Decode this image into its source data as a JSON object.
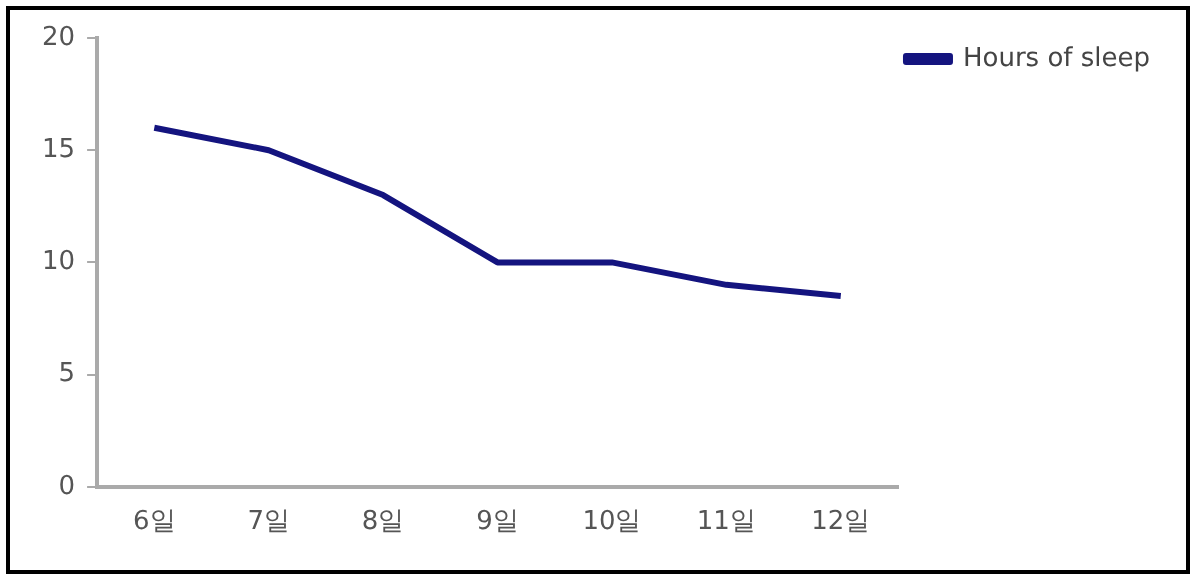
{
  "chart_data": {
    "type": "line",
    "categories": [
      "6일",
      "7일",
      "8일",
      "9일",
      "10일",
      "11일",
      "12일"
    ],
    "series": [
      {
        "name": "Hours of sleep",
        "color": "#14147f",
        "values": [
          16,
          15,
          13,
          10,
          10,
          9,
          8.5
        ]
      }
    ],
    "ylim": [
      0,
      20
    ],
    "yticks": [
      0,
      5,
      10,
      15,
      20
    ],
    "grid": false,
    "legend": "top right",
    "marker": "none",
    "line_style": "solid"
  }
}
